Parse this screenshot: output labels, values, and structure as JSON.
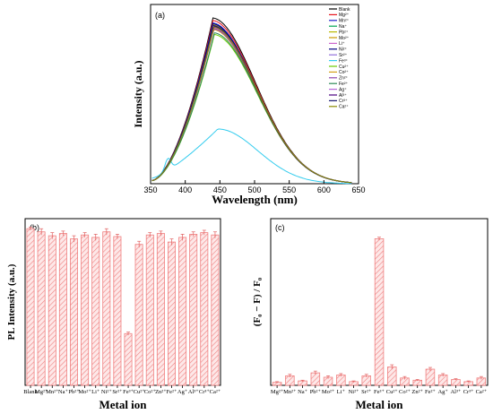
{
  "chart_data": [
    {
      "type": "line",
      "panel_label": "(a)",
      "xlabel": "Wavelength (nm)",
      "ylabel": "Intensity (a.u.)",
      "xlim": [
        350,
        650
      ],
      "xticks": [
        350,
        400,
        450,
        500,
        550,
        600,
        650
      ],
      "legend_position": "top-right",
      "grid": false,
      "series": [
        {
          "name": "Blank",
          "color": "#000000",
          "peak": 1.0,
          "peak_x": 440
        },
        {
          "name": "Mg²⁺",
          "color": "#e8141c",
          "peak": 0.985,
          "peak_x": 440
        },
        {
          "name": "Mn²⁺",
          "color": "#2222cc",
          "peak": 0.97,
          "peak_x": 440
        },
        {
          "name": "Na⁺",
          "color": "#00a651",
          "peak": 0.95,
          "peak_x": 441
        },
        {
          "name": "Pb²⁺",
          "color": "#b8b800",
          "peak": 0.96,
          "peak_x": 440
        },
        {
          "name": "Mo²⁺",
          "color": "#cc9900",
          "peak": 0.955,
          "peak_x": 441
        },
        {
          "name": "Li⁺",
          "color": "#cc66cc",
          "peak": 0.94,
          "peak_x": 441
        },
        {
          "name": "Ni²⁺",
          "color": "#000080",
          "peak": 0.965,
          "peak_x": 440
        },
        {
          "name": "Sr²⁺",
          "color": "#9370db",
          "peak": 0.945,
          "peak_x": 441
        },
        {
          "name": "Fe³⁺",
          "color": "#33ccee",
          "peak": 0.33,
          "peak_x": 447
        },
        {
          "name": "Cu²⁺",
          "color": "#66cc00",
          "peak": 0.9,
          "peak_x": 442
        },
        {
          "name": "Co²⁺",
          "color": "#d4a017",
          "peak": 0.93,
          "peak_x": 441
        },
        {
          "name": "Zn²⁺",
          "color": "#8e44ad",
          "peak": 0.935,
          "peak_x": 441
        },
        {
          "name": "Fe²⁺",
          "color": "#2e8b57",
          "peak": 0.91,
          "peak_x": 442
        },
        {
          "name": "Ag⁺",
          "color": "#b565d9",
          "peak": 0.945,
          "peak_x": 441
        },
        {
          "name": "Al³⁺",
          "color": "#4b0082",
          "peak": 0.95,
          "peak_x": 441
        },
        {
          "name": "Cr³⁺",
          "color": "#191970",
          "peak": 0.955,
          "peak_x": 440
        },
        {
          "name": "Ca²⁺",
          "color": "#8b8b00",
          "peak": 0.945,
          "peak_x": 441
        }
      ]
    },
    {
      "type": "bar",
      "panel_label": "(b)",
      "xlabel": "Metal ion",
      "ylabel": "PL Intensity (a.u.)",
      "ylim": [
        0,
        1.03
      ],
      "bar_color": "#f08080",
      "categories": [
        "Blank",
        "Mg²⁺",
        "Mn²⁺",
        "Na⁺",
        "Pb²⁺",
        "Mo²⁺",
        "Li⁺",
        "Ni²⁺",
        "Sr²⁺",
        "Fe³⁺",
        "Cu²⁺",
        "Co²⁺",
        "Zn²⁺",
        "Fe²⁺",
        "Ag⁺",
        "Al³⁺",
        "Cr³⁺",
        "Ca²⁺"
      ],
      "values": [
        1.0,
        0.98,
        0.955,
        0.97,
        0.935,
        0.96,
        0.945,
        0.98,
        0.95,
        0.33,
        0.9,
        0.96,
        0.97,
        0.915,
        0.945,
        0.965,
        0.975,
        0.96
      ],
      "errors": [
        0.01,
        0.02,
        0.02,
        0.015,
        0.02,
        0.015,
        0.02,
        0.02,
        0.015,
        0.01,
        0.02,
        0.015,
        0.015,
        0.02,
        0.02,
        0.015,
        0.015,
        0.02
      ]
    },
    {
      "type": "bar",
      "panel_label": "(c)",
      "xlabel": "Metal ion",
      "ylabel": "(F₀ − F) / F₀",
      "ylim": [
        0,
        1.1
      ],
      "bar_color": "#f08080",
      "categories": [
        "Mg²⁺",
        "Mn²⁺",
        "Na⁺",
        "Pb²⁺",
        "Mo²⁺",
        "Li⁺",
        "Ni²⁺",
        "Sr²⁺",
        "Fe³⁺",
        "Cu²⁺",
        "Co²⁺",
        "Zn²⁺",
        "Fe²⁺",
        "Ag⁺",
        "Al³⁺",
        "Cr³⁺",
        "Ca²⁺"
      ],
      "values": [
        0.02,
        0.065,
        0.03,
        0.085,
        0.055,
        0.07,
        0.025,
        0.065,
        1.0,
        0.125,
        0.05,
        0.035,
        0.11,
        0.07,
        0.04,
        0.025,
        0.05
      ],
      "errors": [
        0.005,
        0.01,
        0.005,
        0.012,
        0.01,
        0.01,
        0.005,
        0.01,
        0.01,
        0.015,
        0.01,
        0.005,
        0.012,
        0.01,
        0.005,
        0.005,
        0.01
      ]
    }
  ]
}
